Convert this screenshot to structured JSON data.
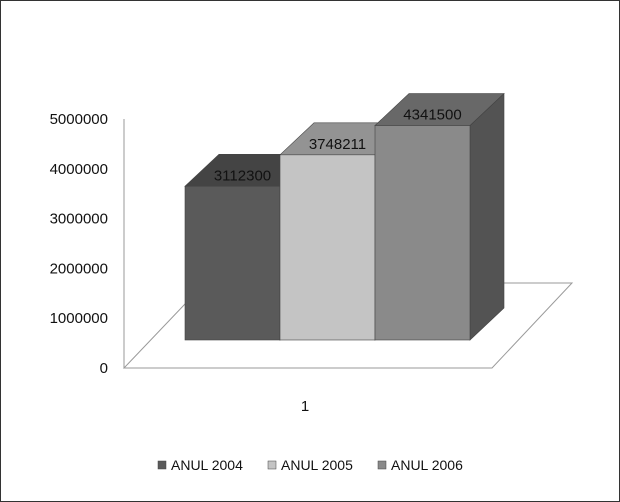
{
  "chart_data": {
    "type": "bar",
    "categories": [
      "1"
    ],
    "series": [
      {
        "name": "ANUL 2004",
        "values": [
          3112300
        ],
        "color": "#5a5a5a"
      },
      {
        "name": "ANUL 2005",
        "values": [
          3748211
        ],
        "color": "#c4c4c4"
      },
      {
        "name": "ANUL 2006",
        "values": [
          4341500
        ],
        "color": "#8a8a8a"
      }
    ],
    "data_labels": [
      "3112300",
      "3748211",
      "4341500"
    ],
    "y_ticks": [
      "0",
      "1000000",
      "2000000",
      "3000000",
      "4000000",
      "5000000"
    ],
    "ylim": [
      0,
      5000000
    ],
    "title": "",
    "xlabel": "",
    "ylabel": "",
    "legend": "bottom",
    "grid": false,
    "style": "3d-bar"
  }
}
